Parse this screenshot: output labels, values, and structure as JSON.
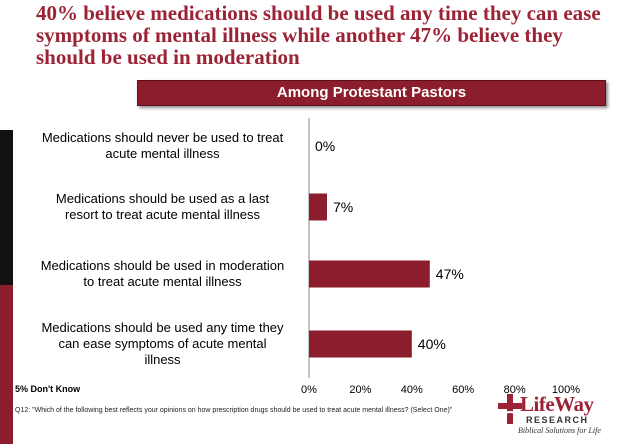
{
  "headline": "40% believe medications should be used any time they can ease symptoms of mental illness while another 47% believe they should be used in moderation",
  "banner": "Among Protestant Pastors",
  "chart_data": {
    "type": "bar",
    "orientation": "horizontal",
    "categories": [
      [
        "Medications should never be used to treat",
        "acute mental illness"
      ],
      [
        "Medications should be used as a last",
        "resort to treat acute mental illness"
      ],
      [
        "Medications should be used in moderation",
        "to treat acute mental illness"
      ],
      [
        "Medications should be used any time they",
        "can ease symptoms of acute mental",
        "illness"
      ]
    ],
    "values": [
      0,
      7,
      47,
      40
    ],
    "value_labels": [
      "0%",
      "7%",
      "47%",
      "40%"
    ],
    "xlim": [
      0,
      100
    ],
    "x_ticks": [
      "0%",
      "20%",
      "40%",
      "60%",
      "80%",
      "100%"
    ],
    "bar_color": "#8b1d2c",
    "grid": false
  },
  "footnote_dont_know": "5% Don't Know",
  "footnote_question": "Q12: \"Which of the following best reflects your opinions on how prescription drugs should be used to treat acute mental illness? (Select One)\"",
  "logo": {
    "name": "LifeWay",
    "sub": "RESEARCH",
    "tagline": "Biblical Solutions for Life"
  }
}
